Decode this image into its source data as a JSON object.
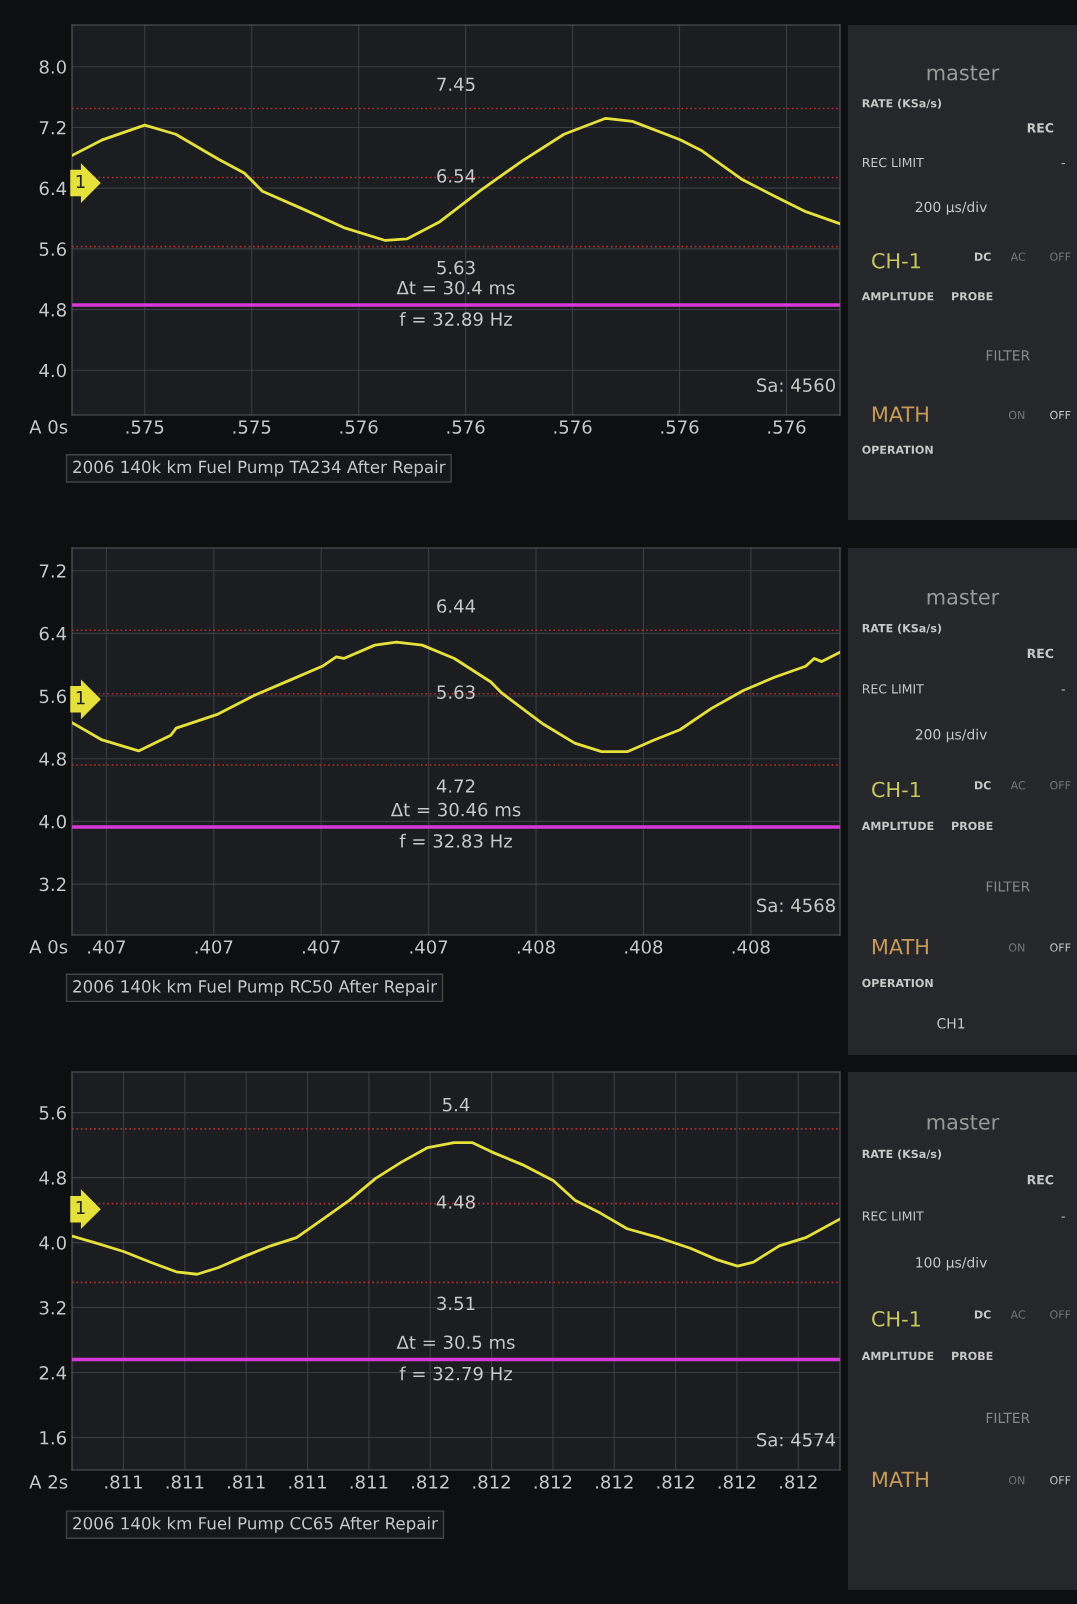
{
  "chart_data": [
    {
      "type": "line",
      "title": "2006 140k km Fuel Pump TA234 After Repair",
      "xlim": [
        0.575064,
        0.5765
      ],
      "ylim": [
        3.41,
        8.55
      ],
      "xticks": [
        {
          "value": 0.5752,
          "label": ".575"
        },
        {
          "value": 0.5754,
          "label": ".575"
        },
        {
          "value": 0.5756,
          "label": ".576"
        },
        {
          "value": 0.5758,
          "label": ".576"
        },
        {
          "value": 0.576,
          "label": ".576"
        },
        {
          "value": 0.5762,
          "label": ".576"
        },
        {
          "value": 0.5764,
          "label": ".576"
        }
      ],
      "yticks": [
        {
          "value": 4,
          "label": "4.0"
        },
        {
          "value": 4.8,
          "label": "4.8"
        },
        {
          "value": 5.6,
          "label": "5.6"
        },
        {
          "value": 6.4,
          "label": "6.4"
        },
        {
          "value": 7.2,
          "label": "7.2"
        },
        {
          "value": 8,
          "label": "8.0"
        }
      ],
      "grid": true,
      "marker": "none",
      "line_style": "solid",
      "series": [
        {
          "color": "#e6e03a",
          "x": [
            0.575064,
            0.575122,
            0.5752,
            0.575258,
            0.575338,
            0.575386,
            0.57542,
            0.575494,
            0.575572,
            0.57565,
            0.57569,
            0.57575,
            0.575828,
            0.575906,
            0.575984,
            0.576062,
            0.576112,
            0.5762,
            0.57624,
            0.576318,
            0.576376,
            0.576436,
            0.5765
          ],
          "values": [
            6.83,
            7.04,
            7.23,
            7.11,
            6.78,
            6.6,
            6.36,
            6.13,
            5.88,
            5.71,
            5.73,
            5.95,
            6.37,
            6.76,
            7.11,
            7.32,
            7.28,
            7.04,
            6.9,
            6.51,
            6.3,
            6.09,
            5.93
          ]
        }
      ],
      "ref_lines": [
        {
          "axis": "y",
          "value": 7.45,
          "label": "7.45",
          "color": "#b03030",
          "line_style": "dotted"
        },
        {
          "axis": "y",
          "value": 6.54,
          "label": "6.54",
          "color": "#b03030",
          "line_style": "dotted"
        },
        {
          "axis": "y",
          "value": 5.63,
          "label": "5.63",
          "color": "#b03030",
          "line_style": "dotted"
        },
        {
          "axis": "y",
          "value": 4.86,
          "label": null,
          "color": "#d838d8",
          "line_style": "solid"
        }
      ],
      "annotations": [
        "A 0s",
        "Δt = 30.4 ms",
        "f = 32.89 Hz",
        "Sa: 4560",
        "1"
      ]
    },
    {
      "type": "other",
      "annotations": [
        "master",
        "RATE (KSa/s)",
        "REC",
        "REC LIMIT",
        "-",
        "200 µs/div",
        "CH-1",
        "DC",
        "AC",
        "OFF",
        "AMPLITUDE",
        "PROBE",
        "FILTER",
        "MATH",
        "ON",
        "OFF",
        "OPERATION"
      ]
    },
    {
      "type": "line",
      "title": "2006 140k km Fuel Pump RC50 After Repair",
      "xlim": [
        0.406736,
        0.408166
      ],
      "ylim": [
        2.55,
        7.49
      ],
      "xticks": [
        {
          "value": 0.4068,
          "label": ".407"
        },
        {
          "value": 0.407,
          "label": ".407"
        },
        {
          "value": 0.4072,
          "label": ".407"
        },
        {
          "value": 0.4074,
          "label": ".407"
        },
        {
          "value": 0.4076,
          "label": ".408"
        },
        {
          "value": 0.4078,
          "label": ".408"
        },
        {
          "value": 0.408,
          "label": ".408"
        }
      ],
      "yticks": [
        {
          "value": 3.2,
          "label": "3.2"
        },
        {
          "value": 4,
          "label": "4.0"
        },
        {
          "value": 4.8,
          "label": "4.8"
        },
        {
          "value": 5.6,
          "label": "5.6"
        },
        {
          "value": 6.4,
          "label": "6.4"
        },
        {
          "value": 7.2,
          "label": "7.2"
        }
      ],
      "grid": true,
      "marker": "none",
      "line_style": "solid",
      "series": [
        {
          "color": "#e6e03a",
          "x": [
            0.406736,
            0.406792,
            0.40686,
            0.40692,
            0.40693,
            0.407008,
            0.407076,
            0.407144,
            0.407202,
            0.407228,
            0.407242,
            0.4073,
            0.40734,
            0.407388,
            0.407448,
            0.407516,
            0.407536,
            0.407614,
            0.407672,
            0.407722,
            0.40777,
            0.40782,
            0.407868,
            0.407926,
            0.407986,
            0.408044,
            0.408102,
            0.408118,
            0.408132,
            0.408166
          ],
          "values": [
            5.26,
            5.04,
            4.9,
            5.1,
            5.19,
            5.37,
            5.61,
            5.81,
            5.98,
            6.1,
            6.08,
            6.25,
            6.29,
            6.25,
            6.08,
            5.78,
            5.64,
            5.24,
            5.0,
            4.89,
            4.89,
            5.04,
            5.17,
            5.44,
            5.67,
            5.84,
            5.98,
            6.08,
            6.04,
            6.16
          ]
        }
      ],
      "ref_lines": [
        {
          "axis": "y",
          "value": 6.44,
          "label": "6.44",
          "color": "#b03030",
          "line_style": "dotted"
        },
        {
          "axis": "y",
          "value": 5.63,
          "label": "5.63",
          "color": "#b03030",
          "line_style": "dotted"
        },
        {
          "axis": "y",
          "value": 4.72,
          "label": "4.72",
          "color": "#b03030",
          "line_style": "dotted"
        },
        {
          "axis": "y",
          "value": 3.93,
          "label": null,
          "color": "#d838d8",
          "line_style": "solid"
        }
      ],
      "annotations": [
        "A 0s",
        "Δt = 30.46 ms",
        "f = 32.83 Hz",
        "Sa: 4568",
        "1"
      ]
    },
    {
      "type": "other",
      "annotations": [
        "master",
        "RATE (KSa/s)",
        "REC",
        "REC LIMIT",
        "-",
        "200 µs/div",
        "CH-1",
        "DC",
        "AC",
        "OFF",
        "AMPLITUDE",
        "PROBE",
        "FILTER",
        "MATH",
        "ON",
        "OFF",
        "OPERATION",
        "CH1"
      ]
    },
    {
      "type": "line",
      "title": "2006 140k km Fuel Pump CC65 After Repair",
      "xlim": [
        0.810966,
        0.812218
      ],
      "ylim": [
        1.2,
        6.1
      ],
      "xticks": [
        {
          "value": 0.81105,
          "label": ".811"
        },
        {
          "value": 0.81115,
          "label": ".811"
        },
        {
          "value": 0.81125,
          "label": ".811"
        },
        {
          "value": 0.81135,
          "label": ".811"
        },
        {
          "value": 0.81145,
          "label": ".811"
        },
        {
          "value": 0.81155,
          "label": ".812"
        },
        {
          "value": 0.81165,
          "label": ".812"
        },
        {
          "value": 0.81175,
          "label": ".812"
        },
        {
          "value": 0.81185,
          "label": ".812"
        },
        {
          "value": 0.81195,
          "label": ".812"
        },
        {
          "value": 0.81205,
          "label": ".812"
        },
        {
          "value": 0.81215,
          "label": ".812"
        }
      ],
      "yticks": [
        {
          "value": 1.6,
          "label": "1.6"
        },
        {
          "value": 2.4,
          "label": "2.4"
        },
        {
          "value": 3.2,
          "label": "3.2"
        },
        {
          "value": 4,
          "label": "4.0"
        },
        {
          "value": 4.8,
          "label": "4.8"
        },
        {
          "value": 5.6,
          "label": "5.6"
        }
      ],
      "grid": true,
      "marker": "none",
      "line_style": "solid",
      "series": [
        {
          "color": "#e6e03a",
          "x": [
            0.810966,
            0.811007,
            0.81105,
            0.811093,
            0.811136,
            0.81117,
            0.811204,
            0.811247,
            0.81129,
            0.811332,
            0.811375,
            0.811418,
            0.811461,
            0.811503,
            0.811546,
            0.811589,
            0.811619,
            0.811649,
            0.8117,
            0.811751,
            0.811786,
            0.811828,
            0.811871,
            0.811923,
            0.811974,
            0.812017,
            0.812051,
            0.812077,
            0.812119,
            0.812162,
            0.812218
          ],
          "values": [
            4.08,
            3.99,
            3.89,
            3.76,
            3.64,
            3.61,
            3.69,
            3.83,
            3.96,
            4.06,
            4.29,
            4.52,
            4.79,
            4.99,
            5.17,
            5.23,
            5.23,
            5.12,
            4.96,
            4.76,
            4.52,
            4.36,
            4.17,
            4.06,
            3.93,
            3.79,
            3.71,
            3.76,
            3.96,
            4.06,
            4.29
          ]
        }
      ],
      "ref_lines": [
        {
          "axis": "y",
          "value": 5.4,
          "label": "5.4",
          "color": "#b03030",
          "line_style": "dotted"
        },
        {
          "axis": "y",
          "value": 4.48,
          "label": "4.48",
          "color": "#b03030",
          "line_style": "dotted"
        },
        {
          "axis": "y",
          "value": 3.51,
          "label": "3.51",
          "color": "#b03030",
          "line_style": "dotted"
        },
        {
          "axis": "y",
          "value": 2.56,
          "label": null,
          "color": "#d838d8",
          "line_style": "solid"
        }
      ],
      "annotations": [
        "A 2s",
        "Δt = 30.5 ms",
        "f = 32.79 Hz",
        "Sa: 4574",
        "1"
      ]
    },
    {
      "type": "other",
      "annotations": [
        "master",
        "RATE (KSa/s)",
        "REC",
        "REC LIMIT",
        "-",
        "100 µs/div",
        "CH-1",
        "DC",
        "AC",
        "OFF",
        "AMPLITUDE",
        "PROBE",
        "FILTER",
        "MATH",
        "ON",
        "OFF"
      ]
    }
  ]
}
